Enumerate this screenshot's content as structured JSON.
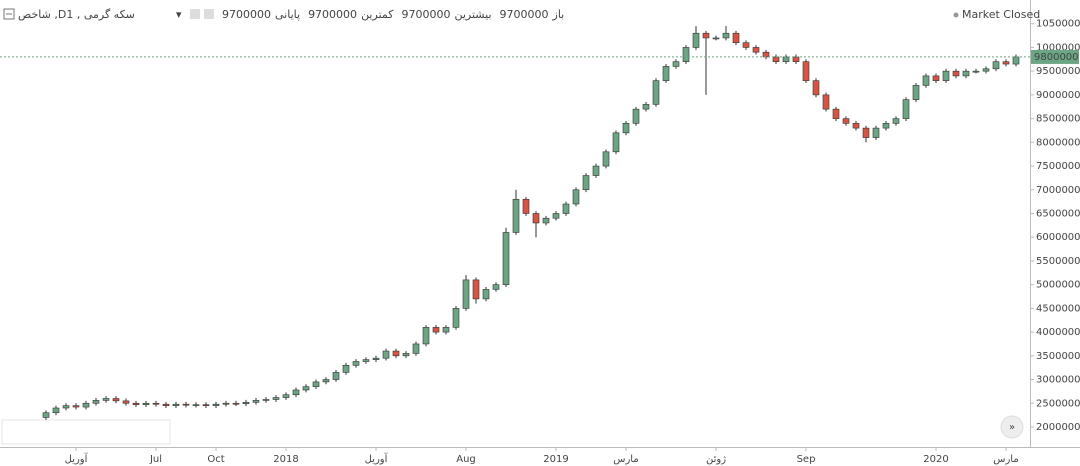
{
  "chart_data": {
    "type": "candlestick",
    "title": "شاخص ,Dسکه گرمی , 1",
    "status": "Market Closed",
    "ohlc_legend": [
      {
        "label": "باز",
        "value": "9700000"
      },
      {
        "label": "بیشترین",
        "value": "9700000"
      },
      {
        "label": "کمترین",
        "value": "9700000"
      },
      {
        "label": "پایانی",
        "value": "9700000"
      }
    ],
    "up_color": "#6ba583",
    "down_color": "#d75442",
    "categories": [
      null,
      null,
      null,
      "آوریل",
      null,
      null,
      null,
      null,
      null,
      null,
      null,
      "Jul",
      null,
      null,
      null,
      null,
      null,
      "Oct",
      null,
      null,
      null,
      null,
      null,
      null,
      "2018",
      null,
      null,
      null,
      null,
      null,
      null,
      null,
      null,
      "آوریل",
      null,
      null,
      null,
      null,
      null,
      null,
      null,
      null,
      "Aug",
      null,
      null,
      null,
      null,
      null,
      null,
      null,
      null,
      "2019",
      null,
      null,
      null,
      null,
      null,
      null,
      "مارس",
      null,
      null,
      null,
      null,
      null,
      null,
      null,
      null,
      "ژوئن",
      null,
      null,
      null,
      null,
      null,
      null,
      null,
      null,
      "Sep",
      null,
      null,
      null,
      null,
      null,
      null,
      null,
      null,
      null,
      null,
      null,
      null,
      "2020",
      null,
      null,
      null,
      null,
      null,
      null,
      "مارس",
      null
    ],
    "open": [
      2200000,
      2300000,
      2400000,
      2450000,
      2420000,
      2500000,
      2560000,
      2600000,
      2550000,
      2500000,
      2470000,
      2500000,
      2480000,
      2450000,
      2480000,
      2460000,
      2470000,
      2450000,
      2480000,
      2500000,
      2490000,
      2520000,
      2560000,
      2580000,
      2620000,
      2680000,
      2780000,
      2850000,
      2950000,
      3000000,
      3150000,
      3300000,
      3380000,
      3420000,
      3450000,
      3600000,
      3500000,
      3550000,
      3750000,
      4100000,
      4000000,
      4100000,
      4500000,
      5100000,
      4700000,
      4900000,
      5000000,
      6100000,
      6800000,
      6500000,
      6300000,
      6400000,
      6500000,
      6700000,
      7000000,
      7300000,
      7500000,
      7800000,
      8200000,
      8400000,
      8700000,
      8800000,
      9300000,
      9600000,
      9700000,
      10000000,
      10300000,
      10200000,
      10200000,
      10300000,
      10100000,
      10000000,
      9900000,
      9800000,
      9700000,
      9800000,
      9700000,
      9300000,
      9000000,
      8700000,
      8500000,
      8400000,
      8300000,
      8100000,
      8300000,
      8400000,
      8500000,
      8900000,
      9200000,
      9400000,
      9300000,
      9500000,
      9400000,
      9500000,
      9500000,
      9550000,
      9700000,
      9650000
    ],
    "high": [
      2350000,
      2450000,
      2500000,
      2500000,
      2550000,
      2610000,
      2650000,
      2650000,
      2600000,
      2550000,
      2550000,
      2550000,
      2530000,
      2530000,
      2530000,
      2520000,
      2520000,
      2530000,
      2550000,
      2550000,
      2570000,
      2610000,
      2630000,
      2670000,
      2730000,
      2830000,
      2900000,
      3000000,
      3050000,
      3200000,
      3350000,
      3430000,
      3470000,
      3500000,
      3650000,
      3650000,
      3600000,
      3800000,
      4150000,
      4150000,
      4150000,
      4550000,
      5200000,
      5150000,
      4950000,
      5050000,
      6200000,
      7000000,
      6850000,
      6550000,
      6450000,
      6550000,
      6750000,
      7050000,
      7350000,
      7550000,
      7850000,
      8250000,
      8450000,
      8750000,
      8850000,
      9350000,
      9650000,
      9750000,
      10050000,
      10450000,
      10350000,
      10250000,
      10450000,
      10350000,
      10150000,
      10050000,
      9950000,
      9850000,
      9850000,
      9850000,
      9750000,
      9350000,
      9050000,
      8750000,
      8550000,
      8450000,
      8350000,
      8350000,
      8450000,
      8550000,
      8950000,
      9250000,
      9450000,
      9450000,
      9550000,
      9550000,
      9550000,
      9550000,
      9600000,
      9750000,
      9750000,
      9850000
    ],
    "low": [
      2150000,
      2250000,
      2350000,
      2370000,
      2370000,
      2450000,
      2510000,
      2500000,
      2450000,
      2420000,
      2420000,
      2430000,
      2400000,
      2400000,
      2410000,
      2410000,
      2400000,
      2400000,
      2430000,
      2440000,
      2440000,
      2470000,
      2510000,
      2530000,
      2570000,
      2630000,
      2730000,
      2800000,
      2900000,
      2950000,
      3100000,
      3250000,
      3330000,
      3370000,
      3400000,
      3450000,
      3450000,
      3500000,
      3700000,
      3950000,
      3950000,
      4050000,
      4450000,
      4600000,
      4650000,
      4850000,
      4950000,
      6050000,
      6450000,
      6000000,
      6250000,
      6350000,
      6450000,
      6650000,
      6950000,
      7250000,
      7450000,
      7750000,
      8150000,
      8350000,
      8650000,
      8750000,
      9250000,
      9550000,
      9650000,
      9950000,
      9000000,
      10150000,
      10150000,
      10050000,
      9950000,
      9850000,
      9750000,
      9650000,
      9650000,
      9650000,
      9250000,
      8950000,
      8650000,
      8450000,
      8350000,
      8250000,
      8000000,
      8050000,
      8250000,
      8350000,
      8450000,
      8850000,
      9150000,
      9250000,
      9250000,
      9350000,
      9350000,
      9450000,
      9450000,
      9500000,
      9600000,
      9600000
    ],
    "close": [
      2300000,
      2400000,
      2450000,
      2420000,
      2500000,
      2560000,
      2600000,
      2550000,
      2500000,
      2470000,
      2500000,
      2480000,
      2450000,
      2480000,
      2460000,
      2470000,
      2450000,
      2480000,
      2500000,
      2490000,
      2520000,
      2560000,
      2580000,
      2620000,
      2680000,
      2780000,
      2850000,
      2950000,
      3000000,
      3150000,
      3300000,
      3380000,
      3420000,
      3450000,
      3600000,
      3500000,
      3550000,
      3750000,
      4100000,
      4000000,
      4100000,
      4500000,
      5100000,
      4700000,
      4900000,
      5000000,
      6100000,
      6800000,
      6500000,
      6300000,
      6400000,
      6500000,
      6700000,
      7000000,
      7300000,
      7500000,
      7800000,
      8200000,
      8400000,
      8700000,
      8800000,
      9300000,
      9600000,
      9700000,
      10000000,
      10300000,
      10200000,
      10200000,
      10300000,
      10100000,
      10000000,
      9900000,
      9800000,
      9700000,
      9800000,
      9700000,
      9300000,
      9000000,
      8700000,
      8500000,
      8400000,
      8300000,
      8100000,
      8300000,
      8400000,
      8500000,
      8900000,
      9200000,
      9400000,
      9300000,
      9500000,
      9400000,
      9500000,
      9500000,
      9550000,
      9700000,
      9650000,
      9800000
    ],
    "ylim": [
      1620000,
      11000000
    ],
    "yticks": [
      2000000,
      2500000,
      3000000,
      3500000,
      4000000,
      4500000,
      5000000,
      5500000,
      6000000,
      6500000,
      7000000,
      7500000,
      8000000,
      8500000,
      9000000,
      9500000,
      10000000,
      10500000
    ]
  }
}
